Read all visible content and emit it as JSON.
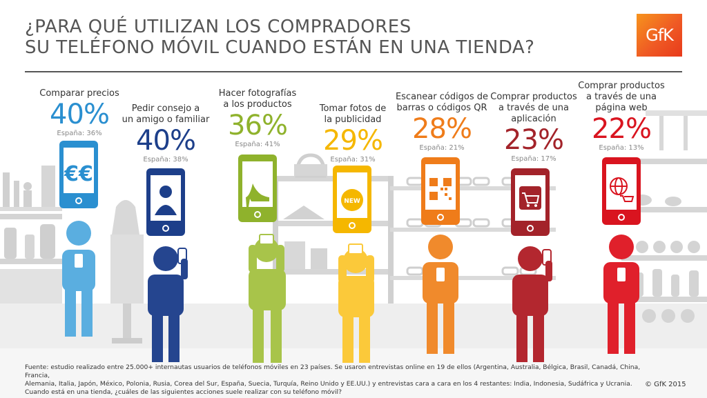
{
  "title": {
    "line1": "¿PARA QUÉ UTILIZAN LOS COMPRADORES",
    "line2": "SU TELÉFONO MÓVIL CUANDO ESTÁN EN UNA TIENDA?"
  },
  "logo_text": "GfK",
  "items": [
    {
      "label": "Comparar precios",
      "pct": "40%",
      "spain": "España: 36%",
      "color": "#2a8fd0",
      "body": "#5aaee0",
      "icon": "euro-icon",
      "screen_text": "€€"
    },
    {
      "label": "Pedir consejo a un amigo o familiar",
      "pct": "40%",
      "spain": "España: 38%",
      "color": "#1d3f8a",
      "body": "#25458f",
      "icon": "person-icon"
    },
    {
      "label": "Hacer fotografías a los productos",
      "pct": "36%",
      "spain": "España: 41%",
      "color": "#8fb22c",
      "body": "#a8c44a",
      "icon": "high-heel-icon"
    },
    {
      "label": "Tomar fotos de la publicidad",
      "pct": "29%",
      "spain": "España: 31%",
      "color": "#f5b700",
      "body": "#fbc93a",
      "icon": "new-badge-icon",
      "screen_text": "NEW"
    },
    {
      "label": "Escanear códigos de barras o códigos QR",
      "pct": "28%",
      "spain": "España: 21%",
      "color": "#ef7c1a",
      "body": "#f08a2c",
      "icon": "qr-code-icon"
    },
    {
      "label": "Comprar productos a través de una aplicación",
      "pct": "23%",
      "spain": "España: 17%",
      "color": "#a3232a",
      "body": "#b3272f",
      "icon": "cart-app-icon"
    },
    {
      "label": "Comprar productos a través de una página web",
      "pct": "22%",
      "spain": "España: 13%",
      "color": "#d9141f",
      "body": "#e0202b",
      "icon": "globe-cart-icon"
    }
  ],
  "footer": {
    "line1": "Fuente: estudio realizado entre 25.000+ internautas usuarios de teléfonos móviles en 23 países. Se usaron entrevistas online en 19 de ellos (Argentina, Australia, Bélgica, Brasil, Canadá, China, Francia,",
    "line2": "Alemania, Italia, Japón, México, Polonia, Rusia, Corea del Sur, España, Suecia, Turquía, Reino Unido y EE.UU.) y entrevistas cara a cara en los 4 restantes: India, Indonesia, Sudáfrica y Ucrania.",
    "line3": "Cuando está en una tienda, ¿cuáles de las siguientes acciones suele realizar con su teléfono móvil?"
  },
  "copyright": "© GfK 2015"
}
